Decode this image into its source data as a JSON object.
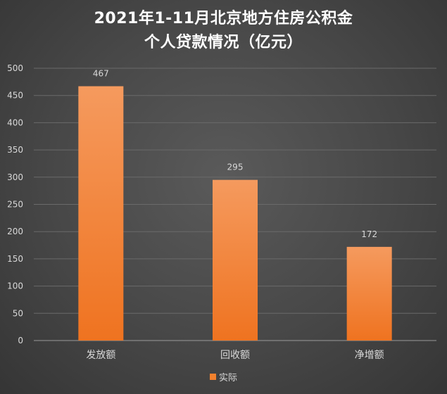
{
  "chart_data": {
    "type": "bar",
    "title_lines": [
      "2021年1-11月北京地方住房公积金",
      "个人贷款情况（亿元）"
    ],
    "categories": [
      "发放额",
      "回收额",
      "净增额"
    ],
    "series": [
      {
        "name": "实际",
        "values": [
          467,
          295,
          172
        ]
      }
    ],
    "data_labels": [
      "467",
      "295",
      "172"
    ],
    "ylim": [
      0,
      500
    ],
    "yticks": [
      "0",
      "50",
      "100",
      "150",
      "200",
      "250",
      "300",
      "350",
      "400",
      "450",
      "500"
    ],
    "grid": true,
    "legend_position": "bottom",
    "colors": {
      "bar_top": "#f59a5e",
      "bar_bottom": "#ef7320",
      "grid": "#6a6a6a",
      "axis": "#9a9a9a",
      "text": "#d9d9d9"
    }
  }
}
